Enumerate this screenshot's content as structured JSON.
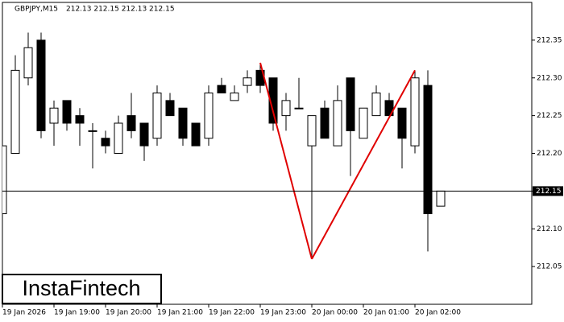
{
  "chart_data": {
    "type": "candlestick",
    "title": "GBPJPY,M15",
    "subtitle": "212.13 212.15 212.13 212.15",
    "logo": "InstaFintech",
    "categories": [
      "19 Jan 2026",
      null,
      null,
      null,
      "19 Jan 19:00",
      null,
      null,
      null,
      "19 Jan 20:00",
      null,
      null,
      null,
      "19 Jan 21:00",
      null,
      null,
      null,
      "19 Jan 22:00",
      null,
      null,
      null,
      "19 Jan 23:00",
      null,
      null,
      null,
      "20 Jan 00:00",
      null,
      null,
      null,
      "20 Jan 01:00",
      null,
      null,
      null,
      "20 Jan 02:00",
      null,
      null
    ],
    "open": [
      212.12,
      212.2,
      212.3,
      212.35,
      212.24,
      212.27,
      212.25,
      212.23,
      212.22,
      212.2,
      212.25,
      212.24,
      212.22,
      212.27,
      212.26,
      212.24,
      212.22,
      212.29,
      212.27,
      212.29,
      212.31,
      212.3,
      212.25,
      212.26,
      212.21,
      212.26,
      212.21,
      212.3,
      212.22,
      212.25,
      212.27,
      212.26,
      212.21,
      212.29,
      212.13
    ],
    "high": [
      212.21,
      212.33,
      212.36,
      212.36,
      212.27,
      212.27,
      212.26,
      212.24,
      212.23,
      212.25,
      212.28,
      212.24,
      212.29,
      212.28,
      212.26,
      212.24,
      212.29,
      212.3,
      212.29,
      212.31,
      212.32,
      212.3,
      212.28,
      212.3,
      212.25,
      212.27,
      212.29,
      212.3,
      212.26,
      212.29,
      212.28,
      212.26,
      212.31,
      212.31,
      212.15
    ],
    "low": [
      212.08,
      212.2,
      212.29,
      212.22,
      212.21,
      212.23,
      212.21,
      212.18,
      212.2,
      212.2,
      212.22,
      212.19,
      212.21,
      212.25,
      212.21,
      212.21,
      212.21,
      212.28,
      212.27,
      212.28,
      212.28,
      212.23,
      212.23,
      212.26,
      212.06,
      212.22,
      212.21,
      212.17,
      212.22,
      212.25,
      212.25,
      212.18,
      212.2,
      212.07,
      212.13
    ],
    "close": [
      212.21,
      212.31,
      212.34,
      212.23,
      212.26,
      212.24,
      212.24,
      212.23,
      212.21,
      212.24,
      212.23,
      212.21,
      212.28,
      212.25,
      212.22,
      212.21,
      212.28,
      212.28,
      212.28,
      212.3,
      212.29,
      212.24,
      212.27,
      212.26,
      212.25,
      212.22,
      212.27,
      212.23,
      212.26,
      212.28,
      212.25,
      212.22,
      212.3,
      212.12,
      212.15
    ],
    "up_color": "#ffffff",
    "down_color": "#000000",
    "ylim": [
      212,
      212.4
    ],
    "yticks": [
      212.05,
      {
        "value": 212.1,
        "label": "212.10"
      },
      212.15,
      {
        "value": 212.2,
        "label": "212.20"
      },
      212.25,
      {
        "value": 212.3,
        "label": "212.30"
      },
      212.35
    ],
    "current_price": 212.15,
    "pattern": {
      "color": "#e00000",
      "values": [
        null,
        null,
        null,
        null,
        null,
        null,
        null,
        null,
        null,
        null,
        null,
        null,
        null,
        null,
        null,
        null,
        null,
        null,
        null,
        null,
        212.32,
        null,
        null,
        null,
        212.06,
        null,
        null,
        null,
        null,
        null,
        null,
        null,
        212.31,
        null,
        null
      ]
    }
  }
}
